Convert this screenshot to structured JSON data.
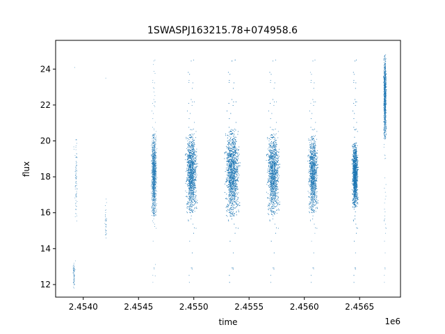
{
  "chart_data": {
    "type": "scatter",
    "title": "1SWASPJ163215.78+074958.6",
    "xlabel": "time",
    "ylabel": "flux",
    "x_offset_label": "1e6",
    "xlim": [
      2453750,
      2456870
    ],
    "ylim": [
      11.3,
      25.6
    ],
    "x_ticks": [
      2454000,
      2454500,
      2455000,
      2455500,
      2456000,
      2456500
    ],
    "x_tick_labels": [
      "2.4540",
      "2.4545",
      "2.4550",
      "2.4555",
      "2.4560",
      "2.4565"
    ],
    "y_ticks": [
      12,
      14,
      16,
      18,
      20,
      22,
      24
    ],
    "y_tick_labels": [
      "12",
      "14",
      "16",
      "18",
      "20",
      "22",
      "24"
    ],
    "grid": false,
    "marker_color": "#1f77b4",
    "clusters": [
      {
        "x_center": 2453915,
        "x_spread": 6,
        "y_min": 11.8,
        "y_max": 13.3,
        "n": 70
      },
      {
        "x_center": 2453935,
        "x_spread": 8,
        "y_min": 15.5,
        "y_max": 20.3,
        "n": 90
      },
      {
        "x_center": 2454205,
        "x_spread": 6,
        "y_min": 14.2,
        "y_max": 16.8,
        "n": 40
      },
      {
        "x_center": 2454640,
        "x_spread": 18,
        "y_min": 15.8,
        "y_max": 20.4,
        "n": 1300
      },
      {
        "x_center": 2454980,
        "x_spread": 38,
        "y_min": 16.0,
        "y_max": 20.4,
        "n": 2800
      },
      {
        "x_center": 2455350,
        "x_spread": 48,
        "y_min": 15.8,
        "y_max": 20.6,
        "n": 4200
      },
      {
        "x_center": 2455720,
        "x_spread": 42,
        "y_min": 15.9,
        "y_max": 20.4,
        "n": 2900
      },
      {
        "x_center": 2456080,
        "x_spread": 32,
        "y_min": 16.0,
        "y_max": 20.3,
        "n": 2200
      },
      {
        "x_center": 2456460,
        "x_spread": 20,
        "y_min": 16.3,
        "y_max": 19.9,
        "n": 3500
      },
      {
        "x_center": 2456730,
        "x_spread": 10,
        "y_min": 20.1,
        "y_max": 24.8,
        "n": 1100
      }
    ]
  }
}
